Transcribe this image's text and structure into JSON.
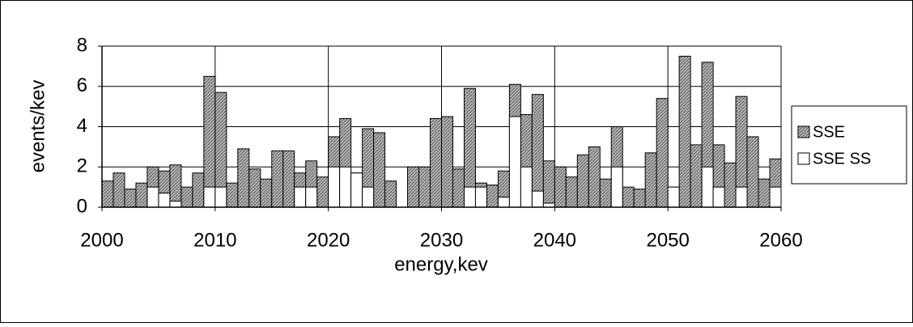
{
  "chart_data": {
    "type": "histogram",
    "xlabel": "energy,kev",
    "ylabel": "events/kev",
    "bins": [
      2000,
      2001,
      2002,
      2003,
      2004,
      2005,
      2006,
      2007,
      2008,
      2009,
      2010,
      2011,
      2012,
      2013,
      2014,
      2015,
      2016,
      2017,
      2018,
      2019,
      2020,
      2021,
      2022,
      2023,
      2024,
      2025,
      2026,
      2027,
      2028,
      2029,
      2030,
      2031,
      2032,
      2033,
      2034,
      2035,
      2036,
      2037,
      2038,
      2039,
      2040,
      2041,
      2042,
      2043,
      2044,
      2045,
      2046,
      2047,
      2048,
      2049,
      2050,
      2051,
      2052,
      2053,
      2054,
      2055,
      2056,
      2057,
      2058,
      2059,
      2060
    ],
    "series": [
      {
        "name": "SSE",
        "color": "#a6a6a6",
        "values": [
          1.3,
          1.7,
          0.9,
          1.2,
          2.0,
          1.8,
          2.1,
          1.0,
          1.7,
          6.5,
          5.7,
          1.2,
          2.9,
          1.9,
          1.4,
          2.8,
          2.8,
          1.7,
          2.3,
          1.5,
          3.5,
          4.4,
          1.7,
          3.9,
          3.7,
          1.3,
          0,
          2.0,
          2.0,
          4.4,
          4.5,
          1.9,
          5.9,
          1.2,
          1.1,
          1.8,
          6.1,
          4.6,
          5.6,
          2.3,
          2.0,
          1.5,
          2.6,
          3.0,
          1.4,
          4.0,
          1.0,
          0.9,
          2.7,
          5.4,
          1.0,
          7.5,
          3.1,
          7.2,
          3.1,
          2.2,
          5.5,
          3.5,
          1.4,
          2.4
        ]
      },
      {
        "name": "SSE SS",
        "color": "#ffffff",
        "values": [
          0,
          0,
          0,
          0,
          1.0,
          0.7,
          0.3,
          0,
          0,
          1.0,
          1.0,
          0,
          0,
          0,
          0,
          0,
          0,
          1.0,
          1.0,
          0,
          2.0,
          2.0,
          1.7,
          1.0,
          0,
          0,
          0,
          0,
          0,
          0,
          0,
          0,
          1.0,
          1.0,
          0,
          0.5,
          4.5,
          2.0,
          0.8,
          0.2,
          0,
          0,
          0,
          0,
          0,
          2.0,
          0,
          0,
          0,
          0,
          1.0,
          0,
          0,
          2.0,
          1.0,
          0,
          1.0,
          0,
          0,
          1.0
        ]
      }
    ],
    "xlim": [
      2000,
      2060
    ],
    "xticks": [
      2000,
      2010,
      2020,
      2030,
      2040,
      2050,
      2060
    ],
    "ylim": [
      0,
      8
    ],
    "yticks": [
      0,
      2,
      4,
      6,
      8
    ],
    "grid": true,
    "legend": "right"
  }
}
